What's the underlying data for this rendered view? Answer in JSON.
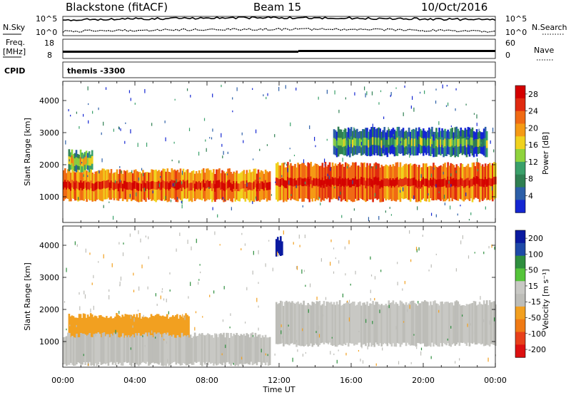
{
  "header": {
    "station": "Blackstone (fitACF)",
    "beam": "Beam 15",
    "date": "10/Oct/2016"
  },
  "panels": {
    "nsky": {
      "label": "N.Sky",
      "ticks": [
        "10^5",
        "10^0"
      ],
      "right_label": "N.Search",
      "right_ticks": [
        "10^5",
        "10^0"
      ]
    },
    "freq": {
      "label": "Freq.",
      "unit": "[MHz]",
      "ticks": [
        "18",
        "8"
      ],
      "right_label": "Nave",
      "right_ticks": [
        "60",
        "0"
      ]
    },
    "cpid": {
      "label": "CPID",
      "value": "themis -3300"
    }
  },
  "colors": {
    "power_scale": [
      "#1426d2",
      "#2c5fa8",
      "#2f7f52",
      "#3aa06a",
      "#8fd33d",
      "#f0d21e",
      "#f59a14",
      "#f06a14",
      "#e02a10",
      "#d40000"
    ],
    "velocity_scale": [
      "#0a1aa0",
      "#1e4aa8",
      "#2e8e3e",
      "#55c43a",
      "#c8c8c4",
      "#bdbdb8",
      "#f2a020",
      "#f07a14",
      "#e8401a",
      "#dd1010"
    ]
  },
  "chart_data": [
    {
      "type": "heatmap",
      "title": "Power",
      "xlabel": "Time UT",
      "ylabel": "Slant Range [km]",
      "x_ticks": [
        "00:00",
        "04:00",
        "08:00",
        "12:00",
        "16:00",
        "20:00",
        "00:00"
      ],
      "y_ticks": [
        1000,
        2000,
        3000,
        4000
      ],
      "ylim": [
        200,
        4600
      ],
      "colorbar": {
        "label": "Power [dB]",
        "ticks": [
          4,
          8,
          12,
          16,
          20,
          24,
          28
        ],
        "range": [
          0,
          30
        ]
      },
      "features": [
        {
          "hour_start": 0.0,
          "hour_end": 11.5,
          "range_start": 900,
          "range_end": 1800,
          "value": 20
        },
        {
          "hour_start": 0.3,
          "hour_end": 1.6,
          "range_start": 1800,
          "range_end": 2400,
          "value": 10
        },
        {
          "hour_start": 11.8,
          "hour_end": 24.0,
          "range_start": 900,
          "range_end": 2000,
          "value": 22
        },
        {
          "hour_start": 15.0,
          "hour_end": 23.5,
          "range_start": 2300,
          "range_end": 3100,
          "value": 5
        }
      ]
    },
    {
      "type": "heatmap",
      "title": "Velocity",
      "xlabel": "Time UT",
      "ylabel": "Slant Range [km]",
      "x_ticks": [
        "00:00",
        "04:00",
        "08:00",
        "12:00",
        "16:00",
        "20:00",
        "00:00"
      ],
      "y_ticks": [
        1000,
        2000,
        3000,
        4000
      ],
      "ylim": [
        200,
        4600
      ],
      "colorbar": {
        "label": "Velocity [m s⁻¹]",
        "ticks": [
          200,
          100,
          50,
          15,
          -15,
          -50,
          -100,
          -200
        ],
        "range": [
          -250,
          250
        ]
      },
      "features": [
        {
          "hour_start": 0.3,
          "hour_end": 7.0,
          "range_start": 900,
          "range_end": 1800,
          "value": -70
        },
        {
          "hour_start": 0.0,
          "hour_end": 11.5,
          "range_start": 300,
          "range_end": 1200,
          "value": 0
        },
        {
          "hour_start": 11.8,
          "hour_end": 24.0,
          "range_start": 900,
          "range_end": 2200,
          "value": 0
        },
        {
          "hour_start": 11.8,
          "hour_end": 12.2,
          "range_start": 3700,
          "range_end": 4200,
          "value": 220
        }
      ]
    }
  ]
}
